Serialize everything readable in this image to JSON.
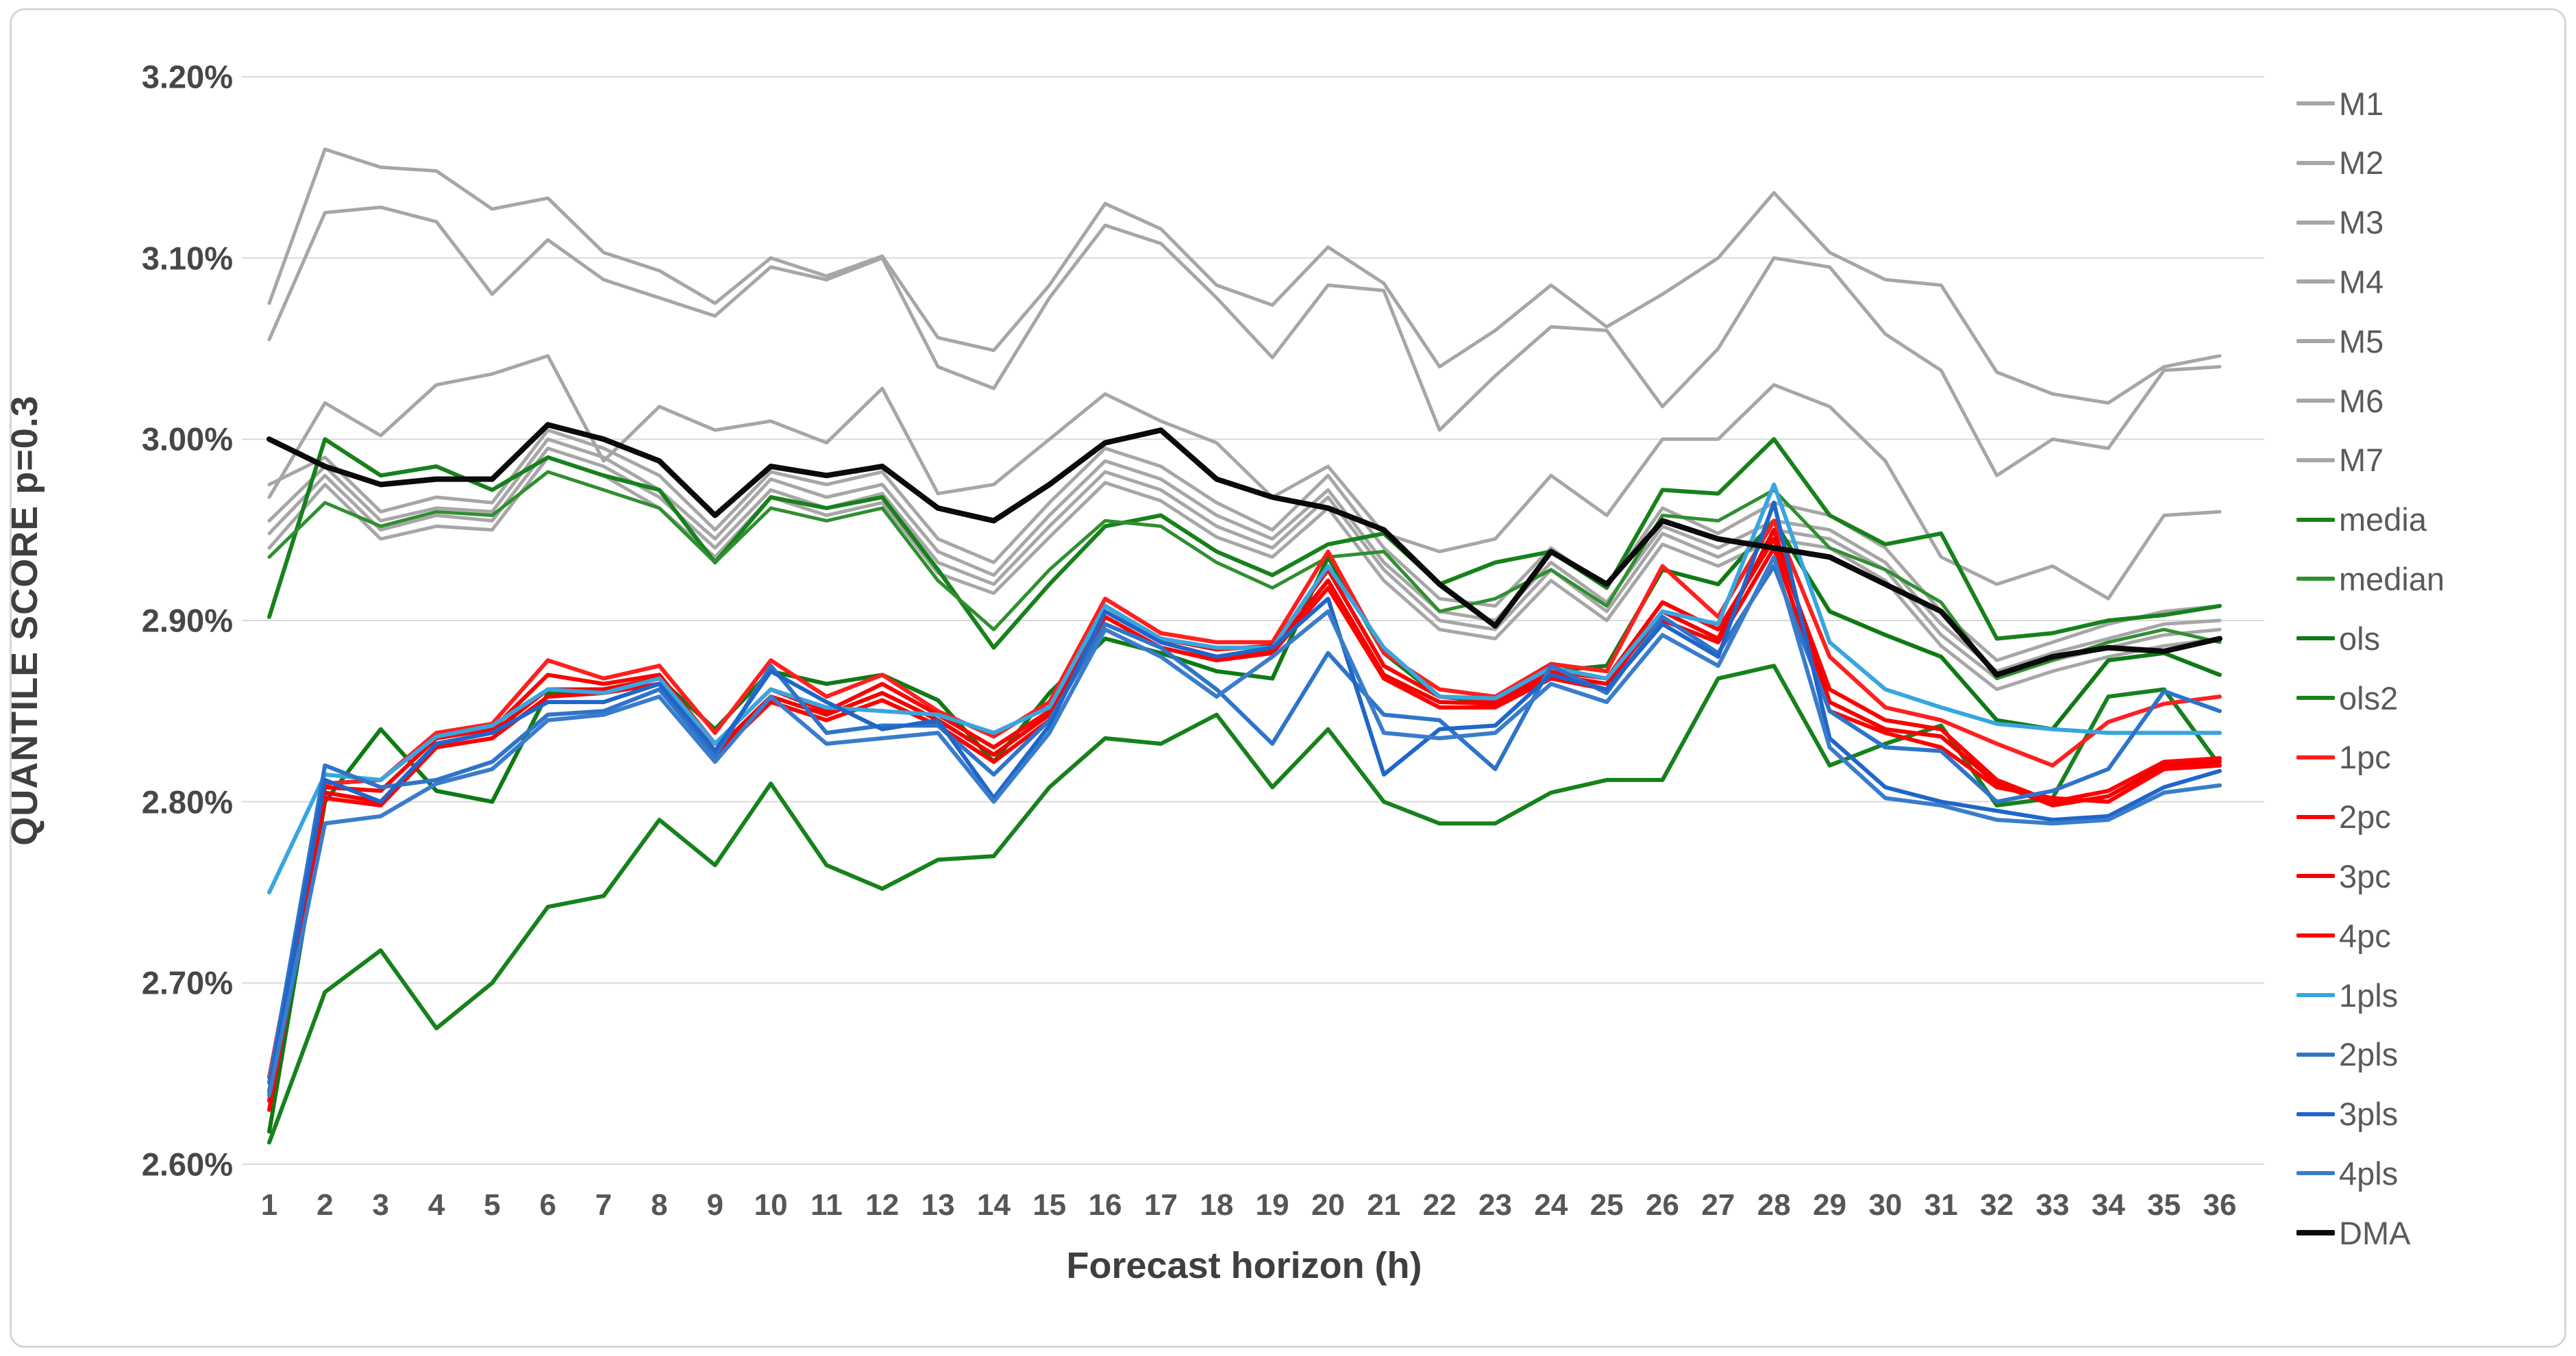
{
  "figure": {
    "background": "#ffffff",
    "frame_border_color": "#d6d6d6",
    "gridline_color": "#d9d9d9",
    "tick_color": "#565656"
  },
  "chart_data": {
    "type": "line",
    "title": "",
    "xlabel": "Forecast horizon (h)",
    "ylabel": "QUANTILE SCORE p=0.3",
    "x": [
      1,
      2,
      3,
      4,
      5,
      6,
      7,
      8,
      9,
      10,
      11,
      12,
      13,
      14,
      15,
      16,
      17,
      18,
      19,
      20,
      21,
      22,
      23,
      24,
      25,
      26,
      27,
      28,
      29,
      30,
      31,
      32,
      33,
      34,
      35,
      36
    ],
    "ylim": [
      2.6,
      3.2
    ],
    "y_ticks": [
      {
        "value": 3.2,
        "label": "3.20%"
      },
      {
        "value": 3.1,
        "label": "3.10%"
      },
      {
        "value": 3.0,
        "label": "3.00%"
      },
      {
        "value": 2.9,
        "label": "2.90%"
      },
      {
        "value": 2.8,
        "label": "2.80%"
      },
      {
        "value": 2.7,
        "label": "2.70%"
      },
      {
        "value": 2.6,
        "label": "2.60%"
      }
    ],
    "grid": "horizontal",
    "legend_position": "right",
    "series": [
      {
        "name": "M1",
        "color": "#a6a6a6",
        "width": 5,
        "values": [
          3.075,
          3.16,
          3.15,
          3.148,
          3.127,
          3.133,
          3.103,
          3.093,
          3.075,
          3.1,
          3.09,
          3.101,
          3.056,
          3.049,
          3.085,
          3.13,
          3.116,
          3.085,
          3.074,
          3.106,
          3.086,
          3.04,
          3.06,
          3.085,
          3.062,
          3.08,
          3.1,
          3.136,
          3.103,
          3.088,
          3.085,
          3.037,
          3.025,
          3.02,
          3.04,
          3.046
        ]
      },
      {
        "name": "M2",
        "color": "#a6a6a6",
        "width": 5,
        "values": [
          3.055,
          3.125,
          3.128,
          3.12,
          3.08,
          3.11,
          3.088,
          3.078,
          3.068,
          3.095,
          3.088,
          3.1,
          3.04,
          3.028,
          3.078,
          3.118,
          3.108,
          3.078,
          3.045,
          3.085,
          3.082,
          3.005,
          3.035,
          3.062,
          3.06,
          3.018,
          3.05,
          3.1,
          3.095,
          3.058,
          3.038,
          2.98,
          3.0,
          2.995,
          3.038,
          3.04
        ]
      },
      {
        "name": "M3",
        "color": "#a6a6a6",
        "width": 5,
        "values": [
          2.968,
          3.02,
          3.002,
          3.03,
          3.036,
          3.046,
          2.988,
          3.018,
          3.005,
          3.01,
          2.998,
          3.028,
          2.97,
          2.975,
          3.0,
          3.025,
          3.01,
          2.998,
          2.968,
          2.985,
          2.948,
          2.938,
          2.945,
          2.98,
          2.958,
          3.0,
          3.0,
          3.03,
          3.018,
          2.988,
          2.935,
          2.92,
          2.93,
          2.912,
          2.958,
          2.96
        ]
      },
      {
        "name": "M4",
        "color": "#a6a6a6",
        "width": 5,
        "values": [
          2.975,
          2.99,
          2.96,
          2.968,
          2.965,
          3.005,
          2.995,
          2.98,
          2.95,
          2.982,
          2.975,
          2.982,
          2.945,
          2.932,
          2.965,
          2.995,
          2.985,
          2.965,
          2.95,
          2.98,
          2.94,
          2.912,
          2.908,
          2.94,
          2.918,
          2.962,
          2.948,
          2.965,
          2.958,
          2.94,
          2.905,
          2.878,
          2.888,
          2.898,
          2.905,
          2.908
        ]
      },
      {
        "name": "M5",
        "color": "#a6a6a6",
        "width": 5,
        "values": [
          2.955,
          2.985,
          2.955,
          2.962,
          2.96,
          3.0,
          2.99,
          2.972,
          2.945,
          2.978,
          2.968,
          2.975,
          2.938,
          2.925,
          2.958,
          2.988,
          2.978,
          2.958,
          2.945,
          2.972,
          2.932,
          2.905,
          2.9,
          2.932,
          2.91,
          2.952,
          2.94,
          2.955,
          2.95,
          2.932,
          2.898,
          2.872,
          2.882,
          2.89,
          2.898,
          2.9
        ]
      },
      {
        "name": "M6",
        "color": "#a6a6a6",
        "width": 5,
        "values": [
          2.948,
          2.98,
          2.95,
          2.958,
          2.955,
          2.995,
          2.985,
          2.968,
          2.94,
          2.972,
          2.962,
          2.97,
          2.932,
          2.92,
          2.952,
          2.982,
          2.972,
          2.952,
          2.94,
          2.968,
          2.928,
          2.9,
          2.895,
          2.928,
          2.905,
          2.948,
          2.935,
          2.95,
          2.945,
          2.928,
          2.892,
          2.868,
          2.878,
          2.885,
          2.892,
          2.895
        ]
      },
      {
        "name": "M7",
        "color": "#a6a6a6",
        "width": 5,
        "values": [
          2.94,
          2.975,
          2.945,
          2.952,
          2.95,
          2.99,
          2.98,
          2.962,
          2.935,
          2.968,
          2.958,
          2.965,
          2.926,
          2.915,
          2.946,
          2.976,
          2.966,
          2.946,
          2.935,
          2.962,
          2.922,
          2.895,
          2.89,
          2.922,
          2.9,
          2.942,
          2.93,
          2.945,
          2.94,
          2.922,
          2.886,
          2.862,
          2.872,
          2.88,
          2.886,
          2.89
        ]
      },
      {
        "name": "media",
        "color": "#17811c",
        "width": 6,
        "values": [
          2.902,
          3.0,
          2.98,
          2.985,
          2.972,
          2.99,
          2.98,
          2.972,
          2.932,
          2.968,
          2.962,
          2.968,
          2.928,
          2.885,
          2.92,
          2.952,
          2.958,
          2.938,
          2.925,
          2.942,
          2.948,
          2.92,
          2.932,
          2.938,
          2.918,
          2.972,
          2.97,
          3.0,
          2.958,
          2.942,
          2.948,
          2.89,
          2.893,
          2.9,
          2.903,
          2.908
        ]
      },
      {
        "name": "median",
        "color": "#2f8f2f",
        "width": 5,
        "values": [
          2.935,
          2.965,
          2.952,
          2.96,
          2.958,
          2.982,
          2.972,
          2.962,
          2.932,
          2.962,
          2.955,
          2.962,
          2.922,
          2.895,
          2.928,
          2.955,
          2.952,
          2.932,
          2.918,
          2.935,
          2.938,
          2.905,
          2.912,
          2.928,
          2.908,
          2.958,
          2.955,
          2.972,
          2.94,
          2.928,
          2.91,
          2.868,
          2.878,
          2.888,
          2.895,
          2.888
        ]
      },
      {
        "name": "ols",
        "color": "#0f7a14",
        "width": 6,
        "values": [
          2.618,
          2.8,
          2.84,
          2.806,
          2.8,
          2.86,
          2.862,
          2.868,
          2.84,
          2.872,
          2.865,
          2.87,
          2.856,
          2.822,
          2.86,
          2.89,
          2.882,
          2.872,
          2.868,
          2.935,
          2.882,
          2.858,
          2.855,
          2.872,
          2.875,
          2.928,
          2.92,
          2.955,
          2.905,
          2.892,
          2.88,
          2.845,
          2.84,
          2.878,
          2.882,
          2.87
        ]
      },
      {
        "name": "ols2",
        "color": "#17811c",
        "width": 6,
        "values": [
          2.612,
          2.695,
          2.718,
          2.675,
          2.7,
          2.742,
          2.748,
          2.79,
          2.765,
          2.81,
          2.765,
          2.752,
          2.768,
          2.77,
          2.808,
          2.835,
          2.832,
          2.848,
          2.808,
          2.84,
          2.8,
          2.788,
          2.788,
          2.805,
          2.812,
          2.812,
          2.868,
          2.875,
          2.82,
          2.832,
          2.842,
          2.798,
          2.802,
          2.858,
          2.862,
          2.82
        ]
      },
      {
        "name": "1pc",
        "color": "#ff1f1f",
        "width": 6,
        "values": [
          2.648,
          2.81,
          2.812,
          2.838,
          2.843,
          2.878,
          2.868,
          2.875,
          2.838,
          2.878,
          2.858,
          2.87,
          2.85,
          2.836,
          2.855,
          2.912,
          2.893,
          2.888,
          2.888,
          2.938,
          2.882,
          2.862,
          2.858,
          2.876,
          2.872,
          2.93,
          2.902,
          2.955,
          2.88,
          2.852,
          2.845,
          2.832,
          2.82,
          2.844,
          2.854,
          2.858
        ]
      },
      {
        "name": "2pc",
        "color": "#fb0404",
        "width": 6,
        "values": [
          2.64,
          2.808,
          2.806,
          2.835,
          2.84,
          2.87,
          2.865,
          2.87,
          2.832,
          2.862,
          2.85,
          2.865,
          2.848,
          2.83,
          2.85,
          2.908,
          2.89,
          2.884,
          2.886,
          2.928,
          2.875,
          2.858,
          2.856,
          2.872,
          2.868,
          2.91,
          2.895,
          2.945,
          2.862,
          2.845,
          2.84,
          2.812,
          2.8,
          2.806,
          2.822,
          2.824
        ]
      },
      {
        "name": "3pc",
        "color": "#f40000",
        "width": 6,
        "values": [
          2.635,
          2.805,
          2.8,
          2.832,
          2.838,
          2.862,
          2.862,
          2.868,
          2.828,
          2.858,
          2.848,
          2.86,
          2.845,
          2.826,
          2.848,
          2.905,
          2.888,
          2.88,
          2.884,
          2.922,
          2.87,
          2.855,
          2.854,
          2.87,
          2.865,
          2.905,
          2.89,
          2.95,
          2.855,
          2.84,
          2.836,
          2.81,
          2.798,
          2.803,
          2.82,
          2.822
        ]
      },
      {
        "name": "4pc",
        "color": "#ff0000",
        "width": 6,
        "values": [
          2.63,
          2.802,
          2.798,
          2.83,
          2.835,
          2.858,
          2.86,
          2.865,
          2.825,
          2.855,
          2.845,
          2.856,
          2.842,
          2.822,
          2.845,
          2.902,
          2.885,
          2.878,
          2.882,
          2.918,
          2.868,
          2.852,
          2.852,
          2.868,
          2.862,
          2.9,
          2.888,
          2.94,
          2.85,
          2.838,
          2.83,
          2.808,
          2.802,
          2.8,
          2.818,
          2.82
        ]
      },
      {
        "name": "1pls",
        "color": "#38a6de",
        "width": 6,
        "values": [
          2.75,
          2.815,
          2.812,
          2.836,
          2.842,
          2.862,
          2.86,
          2.868,
          2.832,
          2.862,
          2.852,
          2.85,
          2.848,
          2.838,
          2.852,
          2.908,
          2.89,
          2.885,
          2.885,
          2.93,
          2.885,
          2.858,
          2.857,
          2.874,
          2.868,
          2.905,
          2.898,
          2.975,
          2.888,
          2.862,
          2.852,
          2.843,
          2.84,
          2.838,
          2.838,
          2.838
        ]
      },
      {
        "name": "2pls",
        "color": "#2f74c9",
        "width": 6,
        "values": [
          2.645,
          2.82,
          2.808,
          2.812,
          2.822,
          2.848,
          2.85,
          2.862,
          2.825,
          2.875,
          2.838,
          2.842,
          2.842,
          2.815,
          2.845,
          2.898,
          2.885,
          2.862,
          2.832,
          2.882,
          2.848,
          2.845,
          2.818,
          2.875,
          2.86,
          2.902,
          2.882,
          2.93,
          2.85,
          2.83,
          2.828,
          2.8,
          2.806,
          2.818,
          2.861,
          2.85
        ]
      },
      {
        "name": "3pls",
        "color": "#1f66c8",
        "width": 6,
        "values": [
          2.64,
          2.812,
          2.8,
          2.832,
          2.838,
          2.855,
          2.855,
          2.865,
          2.828,
          2.872,
          2.855,
          2.84,
          2.845,
          2.802,
          2.842,
          2.905,
          2.888,
          2.88,
          2.885,
          2.912,
          2.815,
          2.84,
          2.842,
          2.87,
          2.862,
          2.898,
          2.88,
          2.965,
          2.835,
          2.808,
          2.8,
          2.795,
          2.79,
          2.792,
          2.808,
          2.817
        ]
      },
      {
        "name": "4pls",
        "color": "#3a7ccc",
        "width": 6,
        "values": [
          2.638,
          2.788,
          2.792,
          2.81,
          2.818,
          2.845,
          2.848,
          2.858,
          2.822,
          2.858,
          2.832,
          2.835,
          2.838,
          2.8,
          2.838,
          2.895,
          2.88,
          2.858,
          2.88,
          2.905,
          2.838,
          2.835,
          2.838,
          2.865,
          2.855,
          2.892,
          2.875,
          2.935,
          2.83,
          2.802,
          2.798,
          2.79,
          2.788,
          2.79,
          2.805,
          2.809
        ]
      },
      {
        "name": "DMA",
        "color": "#0a0a0a",
        "width": 8,
        "values": [
          3.0,
          2.985,
          2.975,
          2.978,
          2.978,
          3.008,
          3.0,
          2.988,
          2.958,
          2.985,
          2.98,
          2.985,
          2.962,
          2.955,
          2.975,
          2.998,
          3.005,
          2.978,
          2.968,
          2.962,
          2.95,
          2.92,
          2.897,
          2.938,
          2.92,
          2.955,
          2.945,
          2.94,
          2.935,
          2.92,
          2.905,
          2.87,
          2.88,
          2.885,
          2.883,
          2.89
        ]
      }
    ],
    "layout": {
      "plot_x_left": 393,
      "plot_x_right": 3240,
      "plot_y_top": 112,
      "plot_y_bottom": 1700,
      "x_tick_y": 1760,
      "legend_x_swatch": 3358,
      "legend_label_x": 3422,
      "legend_y_first": 151,
      "legend_y_step": 86.8
    }
  }
}
